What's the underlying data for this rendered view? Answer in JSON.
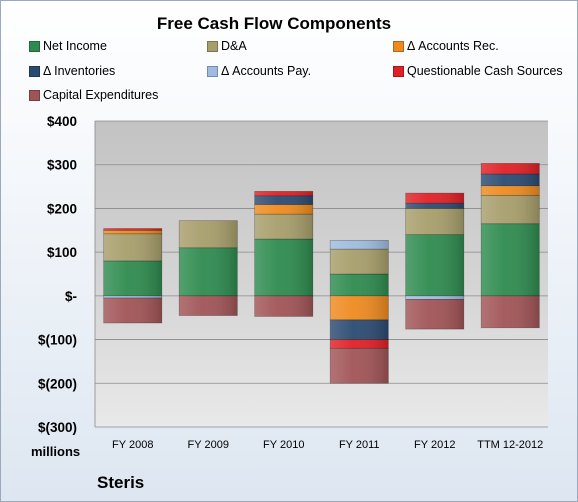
{
  "chart_data": {
    "type": "bar",
    "stacked": true,
    "title": "Free Cash Flow Components",
    "units_label": "millions",
    "company": "Steris",
    "categories": [
      "FY 2008",
      "FY 2009",
      "FY 2010",
      "FY 2011",
      "FY 2012",
      "TTM 12-2012"
    ],
    "ylim": [
      -300,
      400
    ],
    "yticks": [
      400,
      300,
      200,
      100,
      0,
      -100,
      -200,
      -300
    ],
    "ytick_labels": [
      "$400",
      "$300",
      "$200",
      "$100",
      "$-",
      "$(100)",
      "$(200)",
      "$(300)"
    ],
    "grid": true,
    "legend_position": "top",
    "series": [
      {
        "name": "Net Income",
        "color": "#2e8b4f",
        "values": [
          80,
          110,
          130,
          50,
          140,
          165
        ]
      },
      {
        "name": "D&A",
        "color": "#a79e6b",
        "values": [
          62,
          62,
          57,
          57,
          60,
          65
        ]
      },
      {
        "name": "Δ Accounts Rec.",
        "color": "#ee8a1f",
        "values": [
          8,
          0,
          22,
          -55,
          0,
          22
        ]
      },
      {
        "name": "Δ Inventories",
        "color": "#2b4a72",
        "values": [
          0,
          0,
          20,
          -45,
          12,
          27
        ]
      },
      {
        "name": "Δ Accounts Pay.",
        "color": "#9fbbdf",
        "values": [
          -5,
          0,
          0,
          20,
          -8,
          0
        ]
      },
      {
        "name": "Questionable Cash Sources",
        "color": "#e02025",
        "values": [
          4,
          0,
          10,
          -20,
          23,
          24
        ]
      },
      {
        "name": "Capital Expenditures",
        "color": "#a15456",
        "values": [
          -57,
          -45,
          -47,
          -80,
          -68,
          -73
        ]
      }
    ]
  }
}
